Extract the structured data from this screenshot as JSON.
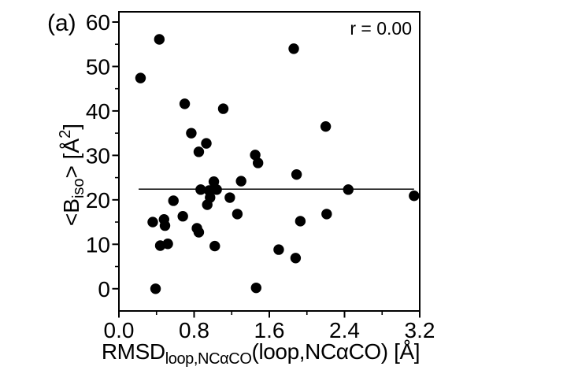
{
  "figure": {
    "panel_label": "(a)",
    "annotation": "r = 0.00",
    "background_color": "#ffffff",
    "foreground_color": "#000000"
  },
  "chart_data": {
    "type": "scatter",
    "title": "",
    "xlabel_parts": [
      {
        "t": "RMSD"
      },
      {
        "t": "loop,NCαCO",
        "style": "sub"
      },
      {
        "t": "(loop,NCαCO)"
      },
      {
        "t": "  [Å]"
      }
    ],
    "ylabel_parts": [
      {
        "t": "<B"
      },
      {
        "t": "iso",
        "style": "sub"
      },
      {
        "t": ">  [Å"
      },
      {
        "t": "2",
        "style": "sup"
      },
      {
        "t": "]"
      }
    ],
    "xlim": [
      0,
      3.2
    ],
    "ylim": [
      -5,
      62.3
    ],
    "x_ticks": {
      "values": [
        0,
        0.8,
        1.6,
        2.4,
        3.2
      ],
      "labels": [
        "0.0",
        "0.8",
        "1.6",
        "2.4",
        "3.2"
      ]
    },
    "x_minor_ticks": [
      0.4,
      1.2,
      2.0,
      2.8
    ],
    "y_ticks": {
      "values": [
        0,
        10,
        20,
        30,
        40,
        50,
        60
      ],
      "labels": [
        "0",
        "10",
        "20",
        "30",
        "40",
        "50",
        "60"
      ]
    },
    "y_minor_ticks": [
      5,
      15,
      25,
      35,
      45,
      55
    ],
    "grid": false,
    "legend": null,
    "marker": {
      "color": "#000000",
      "radius_px": 6.7
    },
    "points": [
      [
        0.43,
        56.1
      ],
      [
        0.23,
        47.4
      ],
      [
        0.7,
        41.6
      ],
      [
        1.11,
        40.5
      ],
      [
        1.86,
        54.0
      ],
      [
        2.2,
        36.5
      ],
      [
        0.77,
        35.0
      ],
      [
        0.93,
        32.7
      ],
      [
        0.85,
        30.8
      ],
      [
        1.45,
        30.1
      ],
      [
        1.48,
        28.3
      ],
      [
        1.89,
        25.7
      ],
      [
        1.01,
        24.1
      ],
      [
        1.3,
        24.2
      ],
      [
        0.87,
        22.3
      ],
      [
        0.96,
        22.1
      ],
      [
        1.04,
        22.3
      ],
      [
        0.97,
        20.5
      ],
      [
        0.94,
        18.9
      ],
      [
        1.18,
        20.5
      ],
      [
        0.58,
        19.8
      ],
      [
        2.44,
        22.3
      ],
      [
        3.14,
        20.9
      ],
      [
        0.36,
        15.0
      ],
      [
        0.48,
        15.6
      ],
      [
        0.49,
        14.2
      ],
      [
        0.68,
        16.3
      ],
      [
        0.83,
        13.6
      ],
      [
        0.85,
        12.7
      ],
      [
        1.26,
        16.8
      ],
      [
        1.93,
        15.2
      ],
      [
        2.21,
        16.8
      ],
      [
        0.44,
        9.7
      ],
      [
        0.52,
        10.1
      ],
      [
        1.02,
        9.6
      ],
      [
        1.7,
        8.8
      ],
      [
        1.88,
        6.9
      ],
      [
        0.39,
        0.0
      ],
      [
        1.46,
        0.2
      ]
    ],
    "fit_line": {
      "y": 22.4,
      "x_start": 0.21,
      "x_end": 3.14,
      "color": "#000000"
    }
  }
}
